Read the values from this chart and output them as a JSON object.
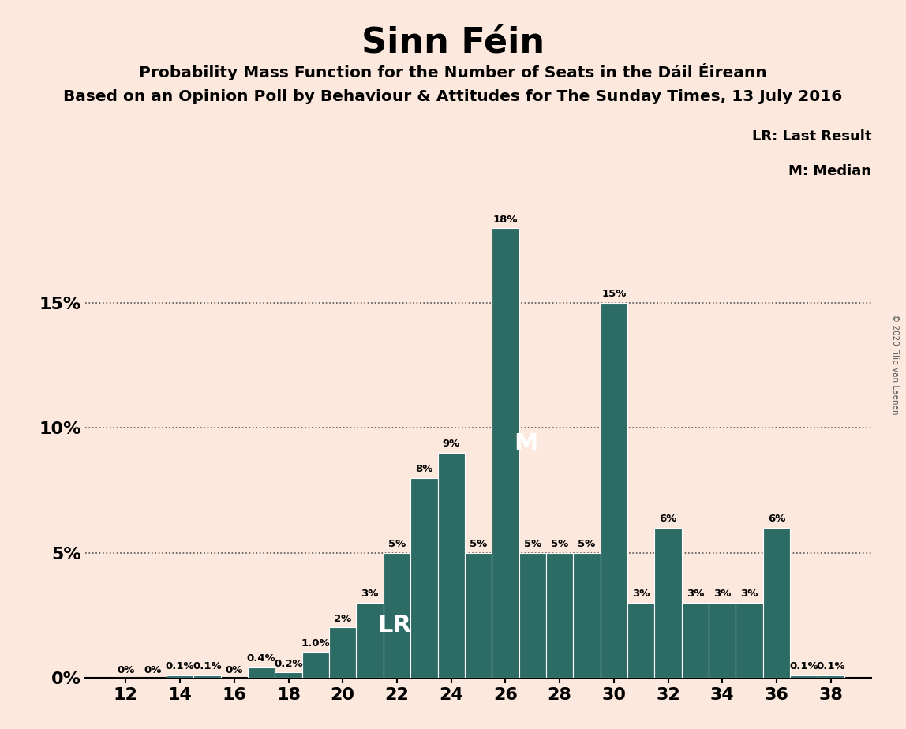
{
  "title": "Sinn Féin",
  "subtitle1": "Probability Mass Function for the Number of Seats in the Dáil Éireann",
  "subtitle2": "Based on an Opinion Poll by Behaviour & Attitudes for The Sunday Times, 13 July 2016",
  "copyright": "© 2020 Filip van Laenen",
  "seats": [
    12,
    13,
    14,
    15,
    16,
    17,
    18,
    19,
    20,
    21,
    22,
    23,
    24,
    25,
    26,
    27,
    28,
    29,
    30,
    31,
    32,
    33,
    34,
    35,
    36,
    37,
    38
  ],
  "values": [
    0.0,
    0.0,
    0.1,
    0.1,
    0.0,
    0.4,
    0.2,
    1.0,
    2.0,
    3.0,
    5.0,
    8.0,
    9.0,
    5.0,
    18.0,
    5.0,
    5.0,
    5.0,
    15.0,
    3.0,
    6.0,
    3.0,
    3.0,
    3.0,
    6.0,
    0.1,
    0.1
  ],
  "labels": [
    "0%",
    "0%",
    "0.1%",
    "0.1%",
    "0%",
    "0.4%",
    "0.2%",
    "1.0%",
    "2%",
    "3%",
    "5%",
    "8%",
    "9%",
    "5%",
    "18%",
    "5%",
    "5%",
    "5%",
    "15%",
    "3%",
    "6%",
    "3%",
    "3%",
    "3%",
    "6%",
    "0.1%",
    "0.1%"
  ],
  "bar_color": "#2d6b65",
  "background_color": "#fce8dd",
  "lr_seat": 22,
  "median_seat": 26,
  "yticks": [
    0,
    5,
    10,
    15
  ],
  "ylim": [
    0,
    20
  ],
  "legend_lr": "LR: Last Result",
  "legend_m": "M: Median",
  "xlabel_seats": [
    12,
    14,
    16,
    18,
    20,
    22,
    24,
    26,
    28,
    30,
    32,
    34,
    36,
    38
  ]
}
